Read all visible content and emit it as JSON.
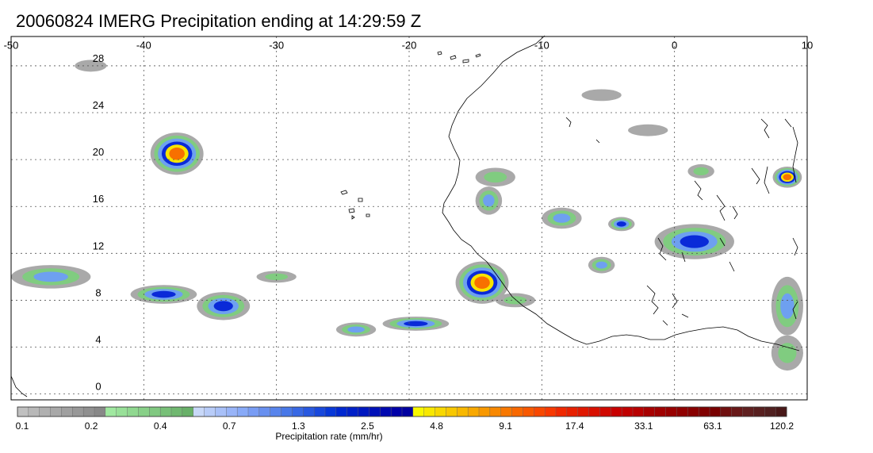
{
  "title": "20060824 IMERG Precipitation ending at 14:29:59 Z",
  "map": {
    "lon_range": [
      -50,
      10
    ],
    "lat_range": [
      -0.5,
      30.5
    ],
    "lon_ticks": [
      -50,
      -40,
      -30,
      -20,
      -10,
      0,
      10
    ],
    "lon_labels": [
      "-50",
      "-40",
      "-30",
      "-20",
      "-10",
      "0",
      "10"
    ],
    "lat_ticks": [
      0,
      4,
      8,
      12,
      16,
      20,
      24,
      28
    ],
    "lat_labels": [
      "0",
      "4",
      "8",
      "12",
      "16",
      "20",
      "24",
      "28"
    ],
    "grid": "dotted",
    "storms": [
      {
        "lon": -37.5,
        "lat": 20.5,
        "rx": 2.0,
        "ry": 1.8,
        "peak": 4
      },
      {
        "lon": -14.5,
        "lat": 9.5,
        "rx": 2.0,
        "ry": 1.8,
        "peak": 4
      },
      {
        "lon": 8.5,
        "lat": 18.5,
        "rx": 1.1,
        "ry": 0.9,
        "peak": 4
      },
      {
        "lon": 1.5,
        "lat": 13.0,
        "rx": 3.0,
        "ry": 1.5,
        "peak": 2
      },
      {
        "lon": -19.5,
        "lat": 6.0,
        "rx": 2.5,
        "ry": 0.6,
        "peak": 2
      },
      {
        "lon": -24.0,
        "lat": 5.5,
        "rx": 1.5,
        "ry": 0.6,
        "peak": 1
      },
      {
        "lon": -34.0,
        "lat": 7.5,
        "rx": 2.0,
        "ry": 1.2,
        "peak": 2
      },
      {
        "lon": -38.5,
        "lat": 8.5,
        "rx": 2.5,
        "ry": 0.8,
        "peak": 2
      },
      {
        "lon": -47.0,
        "lat": 10.0,
        "rx": 3.0,
        "ry": 1.0,
        "peak": 1
      },
      {
        "lon": -8.5,
        "lat": 15.0,
        "rx": 1.5,
        "ry": 0.9,
        "peak": 1
      },
      {
        "lon": -4.0,
        "lat": 14.5,
        "rx": 1.0,
        "ry": 0.6,
        "peak": 2
      },
      {
        "lon": -14.0,
        "lat": 16.5,
        "rx": 1.0,
        "ry": 1.2,
        "peak": 1
      },
      {
        "lon": -5.5,
        "lat": 11.0,
        "rx": 1.0,
        "ry": 0.7,
        "peak": 1
      },
      {
        "lon": 8.5,
        "lat": 7.5,
        "rx": 1.2,
        "ry": 2.5,
        "peak": 1
      },
      {
        "lon": 8.5,
        "lat": 3.5,
        "rx": 1.2,
        "ry": 1.5,
        "peak": 0
      },
      {
        "lon": -12.0,
        "lat": 8.0,
        "rx": 1.5,
        "ry": 0.6,
        "peak": 0
      },
      {
        "lon": -13.5,
        "lat": 18.5,
        "rx": 1.5,
        "ry": 0.8,
        "peak": 0
      },
      {
        "lon": -2.0,
        "lat": 22.5,
        "rx": 1.5,
        "ry": 0.5,
        "peak": -1
      },
      {
        "lon": -5.5,
        "lat": 25.5,
        "rx": 1.5,
        "ry": 0.5,
        "peak": -1
      },
      {
        "lon": -30.0,
        "lat": 10.0,
        "rx": 1.5,
        "ry": 0.5,
        "peak": 0
      },
      {
        "lon": -44.0,
        "lat": 28.0,
        "rx": 1.2,
        "ry": 0.5,
        "peak": -1
      },
      {
        "lon": 2.0,
        "lat": 19.0,
        "rx": 1.0,
        "ry": 0.6,
        "peak": 0
      }
    ]
  },
  "colorbar": {
    "title": "Precipitation rate (mm/hr)",
    "labels": [
      "0.1",
      "0.2",
      "0.4",
      "0.7",
      "1.3",
      "2.5",
      "4.8",
      "9.1",
      "17.4",
      "33.1",
      "63.1",
      "120.2"
    ],
    "colors": [
      "#c0c0c0",
      "#b8b8b8",
      "#b0b0b0",
      "#a8a8a8",
      "#a0a0a0",
      "#989898",
      "#909090",
      "#888888",
      "#a0e8a0",
      "#98e098",
      "#90d890",
      "#88d088",
      "#80c880",
      "#78c078",
      "#70b870",
      "#68b068",
      "#c8d8f8",
      "#b8ccf8",
      "#a8c0f8",
      "#98b4f8",
      "#88aaf8",
      "#789cf4",
      "#6890f0",
      "#5884ec",
      "#4878e8",
      "#3868e4",
      "#2858e0",
      "#1848dc",
      "#0838d8",
      "#0028d0",
      "#0020c8",
      "#0018c0",
      "#0010b8",
      "#0008b0",
      "#0000a8",
      "#0000a0",
      "#f8f800",
      "#f8e800",
      "#f8d800",
      "#f8c800",
      "#f8b800",
      "#f8a800",
      "#f89800",
      "#f88800",
      "#f87800",
      "#f86800",
      "#f85800",
      "#f84800",
      "#f83800",
      "#f02800",
      "#e82000",
      "#e01800",
      "#d81000",
      "#d00800",
      "#c80000",
      "#c00000",
      "#b80000",
      "#a80000",
      "#a00000",
      "#980000",
      "#900000",
      "#880000",
      "#800000",
      "#780000",
      "#701010",
      "#681818",
      "#602020",
      "#582020",
      "#502020",
      "#481818"
    ]
  }
}
